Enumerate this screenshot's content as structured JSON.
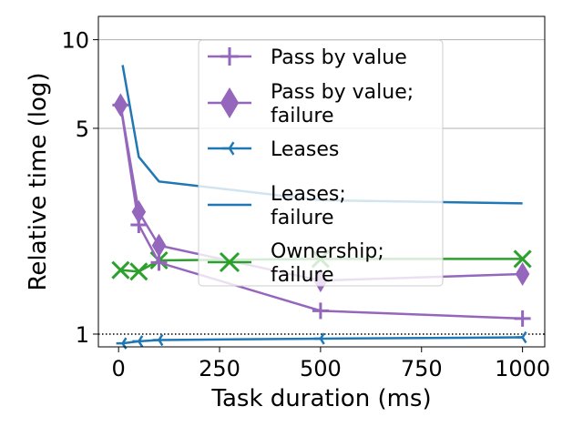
{
  "chart_data": {
    "type": "line",
    "title": "",
    "xlabel": "Task duration (ms)",
    "ylabel": "Relative time (log)",
    "xlim": [
      -50,
      1055
    ],
    "ylim": [
      0.905,
      12.0
    ],
    "yscale": "log",
    "x_ticks": [
      0,
      250,
      500,
      750,
      1000
    ],
    "x_tick_labels": [
      "0",
      "250",
      "500",
      "750",
      "1000"
    ],
    "y_ticks": [
      1,
      5,
      10
    ],
    "y_tick_labels": [
      "1",
      "5",
      "10"
    ],
    "grid": "horizontal major gridlines",
    "reference_line": {
      "y": 1,
      "style": "dotted"
    },
    "legend_position": "upper center",
    "series": [
      {
        "name": "Pass by value",
        "color": "#9467bd",
        "marker": "plus",
        "x": [
          5,
          50,
          100,
          500,
          1000
        ],
        "y": [
          6.0,
          2.35,
          1.75,
          1.2,
          1.13
        ]
      },
      {
        "name": "Pass by value;\nfailure",
        "color": "#9467bd",
        "marker": "thin-diamond",
        "x": [
          5,
          50,
          100,
          500,
          1000
        ],
        "y": [
          6.0,
          2.6,
          2.0,
          1.52,
          1.6
        ]
      },
      {
        "name": "Leases",
        "color": "#1f77b4",
        "marker": "tri-left",
        "x": [
          10,
          50,
          100,
          500,
          1000
        ],
        "y": [
          0.93,
          0.945,
          0.955,
          0.965,
          0.975
        ]
      },
      {
        "name": "Leases;\nfailure",
        "color": "#1f77b4",
        "marker": "none",
        "x": [
          10,
          50,
          100,
          500,
          1000
        ],
        "y": [
          8.2,
          4.0,
          3.3,
          2.85,
          2.78
        ]
      },
      {
        "name": "Ownership;\nfailure",
        "color": "#2ca02c",
        "marker": "x",
        "x": [
          5,
          50,
          100,
          500,
          1000
        ],
        "y": [
          1.65,
          1.63,
          1.78,
          1.8,
          1.8
        ]
      }
    ]
  }
}
